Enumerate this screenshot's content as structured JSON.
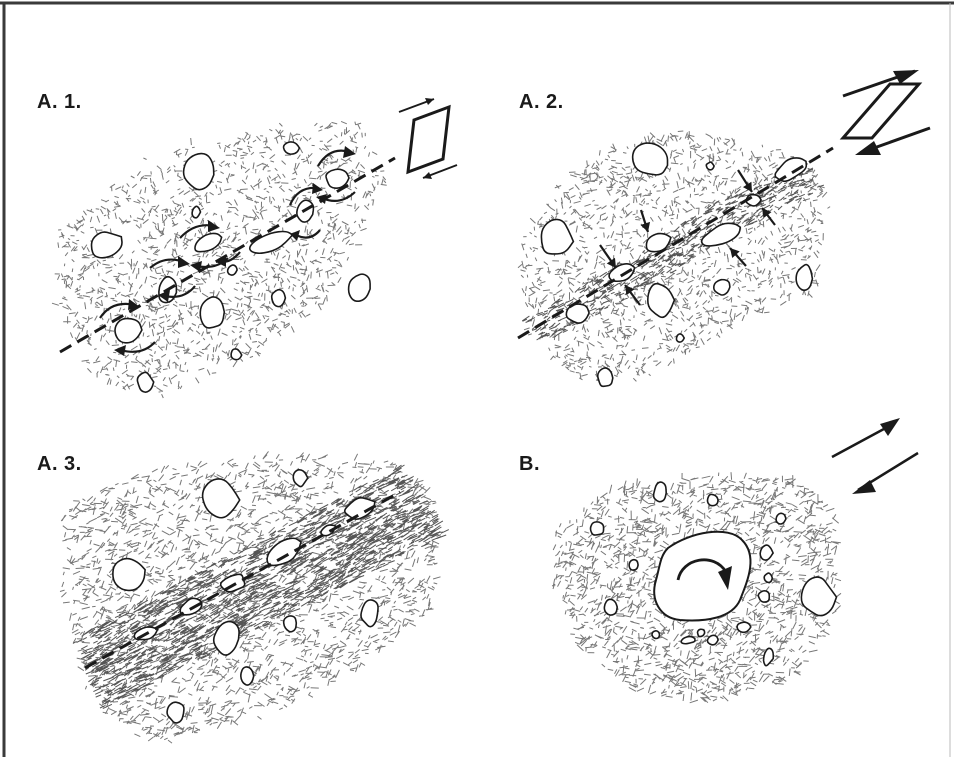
{
  "panels": {
    "a1": {
      "label": "A. 1."
    },
    "a2": {
      "label": "A. 2."
    },
    "a3": {
      "label": "A. 3."
    },
    "b": {
      "label": "B."
    }
  },
  "colors": {
    "ink": "#1a1a1a",
    "stipple": "#777777",
    "border": "#3a3a3a",
    "background": "#ffffff"
  },
  "icons": [
    "shear-box-icon",
    "shear-sense-arrows-icon",
    "rotation-arrow-icon",
    "compression-arrow-icon"
  ]
}
